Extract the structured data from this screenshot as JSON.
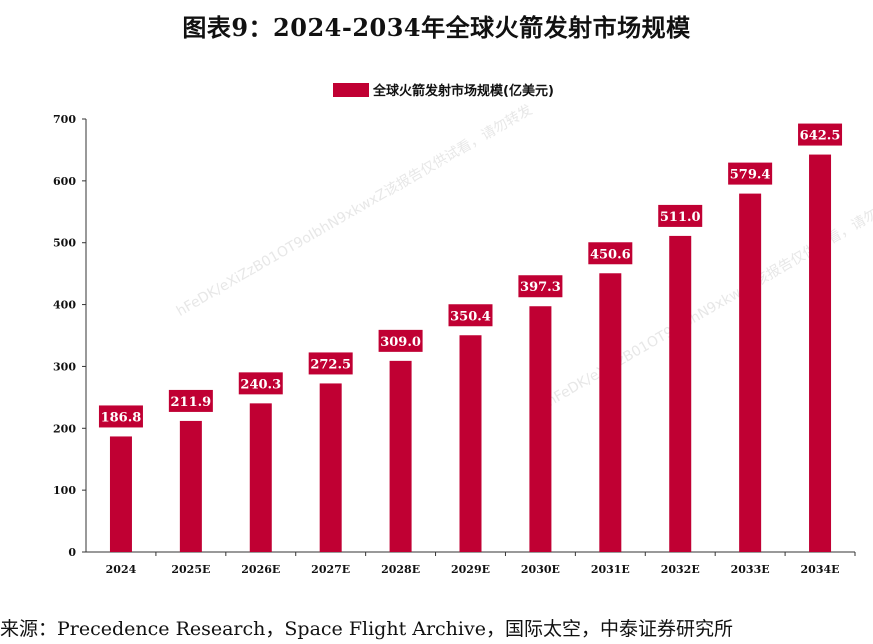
{
  "title": "图表9：2024-2034年全球火箭发射市场规模",
  "source": "来源：Precedence Research，Space Flight Archive，国际太空，中泰证券研究所",
  "colors": {
    "bar": "#c00033",
    "label_bg": "#c00033",
    "label_text": "#ffffff",
    "axis": "#333333"
  },
  "chart_data": {
    "type": "bar",
    "title": "",
    "legend": [
      "全球火箭发射市场规模(亿美元)"
    ],
    "legend_position": "top-center",
    "categories": [
      "2024",
      "2025E",
      "2026E",
      "2027E",
      "2028E",
      "2029E",
      "2030E",
      "2031E",
      "2032E",
      "2033E",
      "2034E"
    ],
    "values": [
      186.8,
      211.9,
      240.3,
      272.5,
      309.0,
      350.4,
      397.3,
      450.6,
      511.0,
      579.4,
      642.5
    ],
    "value_labels": [
      "186.8",
      "211.9",
      "240.3",
      "272.5",
      "309.0",
      "350.4",
      "397.3",
      "450.6",
      "511.0",
      "579.4",
      "642.5"
    ],
    "y_ticks": [
      "0",
      "100",
      "200",
      "300",
      "400",
      "500",
      "600",
      "700"
    ],
    "ylim": [
      0,
      700
    ],
    "xlabel": "",
    "ylabel": "",
    "grid": false
  }
}
